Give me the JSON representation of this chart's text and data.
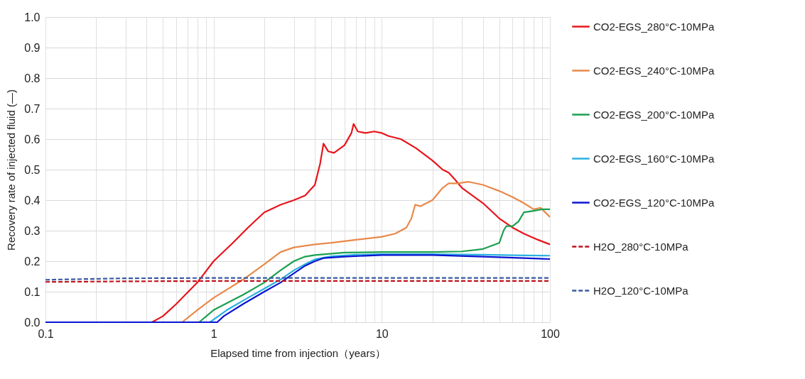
{
  "chart_data": {
    "type": "line",
    "xlabel": "Elapsed time from injection（years）",
    "ylabel": "Recovery rate of injected fluid (—)",
    "log": "x",
    "grid": true,
    "legend": "right",
    "marker": "none",
    "xlim": [
      0.1,
      100
    ],
    "xticks": [
      0.1,
      1,
      10,
      100
    ],
    "ylim": [
      0,
      1
    ],
    "yticks": [
      {
        "value": 0,
        "label": "0.0"
      },
      0.1,
      0.2,
      0.3,
      0.4,
      0.5,
      0.6,
      0.7,
      0.8,
      0.9,
      {
        "value": 1,
        "label": "1.0"
      }
    ],
    "series": [
      {
        "name": "CO2-EGS_280°C-10MPa",
        "color": "#e8141b",
        "line_style": "solid",
        "x": [
          0.1,
          0.43,
          0.5,
          0.6,
          0.8,
          1,
          1.3,
          1.6,
          2,
          2.5,
          3,
          3.5,
          4,
          4.3,
          4.5,
          4.8,
          5.2,
          6,
          6.6,
          6.8,
          7.2,
          8,
          9,
          10,
          11,
          13,
          16,
          20,
          23,
          25,
          27,
          30,
          40,
          50,
          60,
          70,
          85,
          100
        ],
        "values": [
          0,
          0,
          0.02,
          0.06,
          0.13,
          0.2,
          0.26,
          0.31,
          0.36,
          0.385,
          0.4,
          0.415,
          0.45,
          0.52,
          0.585,
          0.56,
          0.555,
          0.58,
          0.62,
          0.65,
          0.625,
          0.62,
          0.625,
          0.62,
          0.61,
          0.6,
          0.57,
          0.53,
          0.5,
          0.49,
          0.47,
          0.44,
          0.39,
          0.34,
          0.31,
          0.29,
          0.27,
          0.255
        ]
      },
      {
        "name": "CO2-EGS_240°C-10MPa",
        "color": "#e8894a",
        "line_style": "solid",
        "x": [
          0.1,
          0.65,
          0.8,
          1,
          1.5,
          2,
          2.5,
          3,
          4,
          5,
          7,
          10,
          12,
          14,
          15,
          15.8,
          17,
          20,
          23,
          25,
          28,
          33,
          40,
          50,
          60,
          70,
          80,
          88,
          100
        ],
        "values": [
          0,
          0,
          0.04,
          0.08,
          0.14,
          0.19,
          0.23,
          0.245,
          0.255,
          0.26,
          0.27,
          0.28,
          0.29,
          0.31,
          0.34,
          0.385,
          0.38,
          0.4,
          0.44,
          0.455,
          0.455,
          0.46,
          0.45,
          0.43,
          0.41,
          0.39,
          0.37,
          0.375,
          0.345
        ]
      },
      {
        "name": "CO2-EGS_200°C-10MPa",
        "color": "#1aa050",
        "line_style": "solid",
        "x": [
          0.1,
          0.82,
          1,
          1.5,
          2,
          2.5,
          3,
          3.5,
          4,
          6,
          10,
          20,
          30,
          40,
          50,
          53,
          55,
          60,
          65,
          70,
          80,
          90,
          100
        ],
        "values": [
          0,
          0,
          0.04,
          0.09,
          0.13,
          0.17,
          0.2,
          0.215,
          0.22,
          0.228,
          0.23,
          0.23,
          0.232,
          0.24,
          0.26,
          0.3,
          0.315,
          0.315,
          0.33,
          0.36,
          0.365,
          0.37,
          0.37
        ]
      },
      {
        "name": "CO2-EGS_160°C-10MPa",
        "color": "#2ab0e0",
        "line_style": "solid",
        "x": [
          0.1,
          0.95,
          1.2,
          1.6,
          2,
          2.5,
          3,
          3.5,
          4,
          5,
          7,
          10,
          20,
          40,
          70,
          100
        ],
        "values": [
          0,
          0,
          0.04,
          0.08,
          0.11,
          0.14,
          0.17,
          0.19,
          0.206,
          0.216,
          0.221,
          0.223,
          0.223,
          0.221,
          0.219,
          0.218
        ]
      },
      {
        "name": "CO2-EGS_120°C-10MPa",
        "color": "#0a14d0",
        "line_style": "solid",
        "x": [
          0.1,
          1.05,
          1.15,
          1.5,
          2,
          2.5,
          3,
          3.5,
          4,
          4.5,
          6,
          10,
          20,
          40,
          70,
          100
        ],
        "values": [
          0,
          0,
          0.02,
          0.06,
          0.1,
          0.13,
          0.16,
          0.185,
          0.2,
          0.21,
          0.215,
          0.22,
          0.22,
          0.215,
          0.21,
          0.207
        ]
      },
      {
        "name": "H2O_280°C-10MPa",
        "color": "#c0141e",
        "line_style": "dashed",
        "x": [
          0.1,
          0.3,
          1,
          10,
          100
        ],
        "values": [
          0.132,
          0.134,
          0.135,
          0.135,
          0.135
        ]
      },
      {
        "name": "H2O_120°C-10MPa",
        "color": "#3a5aa0",
        "line_style": "dashed",
        "x": [
          0.1,
          0.3,
          1,
          10,
          100
        ],
        "values": [
          0.139,
          0.144,
          0.145,
          0.145,
          0.145
        ]
      }
    ]
  }
}
